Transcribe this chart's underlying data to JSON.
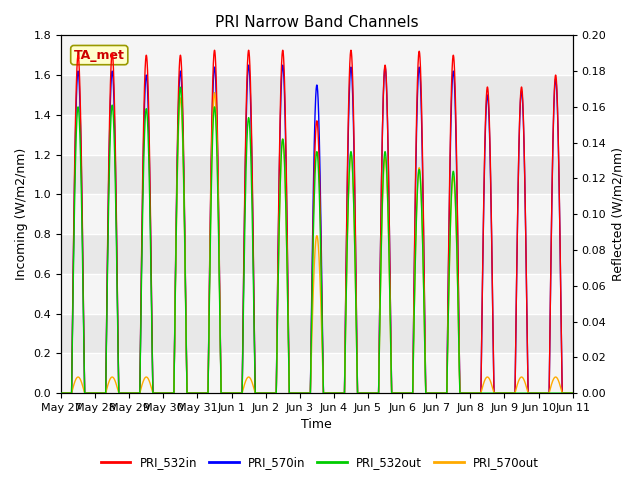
{
  "title": "PRI Narrow Band Channels",
  "xlabel": "Time",
  "ylabel_left": "Incoming (W/m2/nm)",
  "ylabel_right": "Reflected (W/m2/nm)",
  "ylim_left": [
    0.0,
    1.8
  ],
  "ylim_right": [
    0.0,
    0.2
  ],
  "yticks_left": [
    0.0,
    0.2,
    0.4,
    0.6,
    0.8,
    1.0,
    1.2,
    1.4,
    1.6,
    1.8
  ],
  "yticks_right": [
    0.0,
    0.02,
    0.04,
    0.06,
    0.08,
    0.1,
    0.12,
    0.14,
    0.16,
    0.18,
    0.2
  ],
  "colors": {
    "PRI_532in": "#ff0000",
    "PRI_570in": "#0000ff",
    "PRI_532out": "#00cc00",
    "PRI_570out": "#ffaa00"
  },
  "legend_labels": [
    "PRI_532in",
    "PRI_570in",
    "PRI_532out",
    "PRI_570out"
  ],
  "annotation_text": "TA_met",
  "annotation_color": "#cc0000",
  "annotation_bg": "#ffffcc",
  "plot_bg_light": "#e8e8e8",
  "plot_bg_dark": "#d0d0d0",
  "xtick_labels": [
    "May 27",
    "May 28",
    "May 29",
    "May 30",
    "May 31",
    "Jun 1",
    "Jun 2",
    "Jun 3",
    "Jun 4",
    "Jun 5",
    "Jun 6",
    "Jun 7",
    "Jun 8",
    "Jun 9",
    "Jun 10",
    "Jun 11"
  ],
  "peak_heights_532in": [
    1.7,
    1.71,
    1.7,
    1.7,
    1.725,
    1.725,
    1.725,
    1.37,
    1.725,
    1.65,
    1.72,
    1.7,
    1.54,
    1.54,
    1.6
  ],
  "peak_heights_570in": [
    1.62,
    1.62,
    1.6,
    1.62,
    1.64,
    1.65,
    1.65,
    1.55,
    1.64,
    1.64,
    1.64,
    1.62,
    1.5,
    1.52,
    1.58
  ],
  "peak_heights_532out": [
    0.16,
    0.161,
    0.159,
    0.171,
    0.16,
    0.154,
    0.142,
    0.135,
    0.135,
    0.135,
    0.125,
    0.124,
    0.0,
    0.0,
    0.0
  ],
  "peak_heights_570out": [
    0.009,
    0.009,
    0.009,
    0.165,
    0.168,
    0.009,
    0.142,
    0.088,
    0.134,
    0.132,
    0.126,
    0.121,
    0.009,
    0.009,
    0.009
  ],
  "linewidth": 1.0
}
